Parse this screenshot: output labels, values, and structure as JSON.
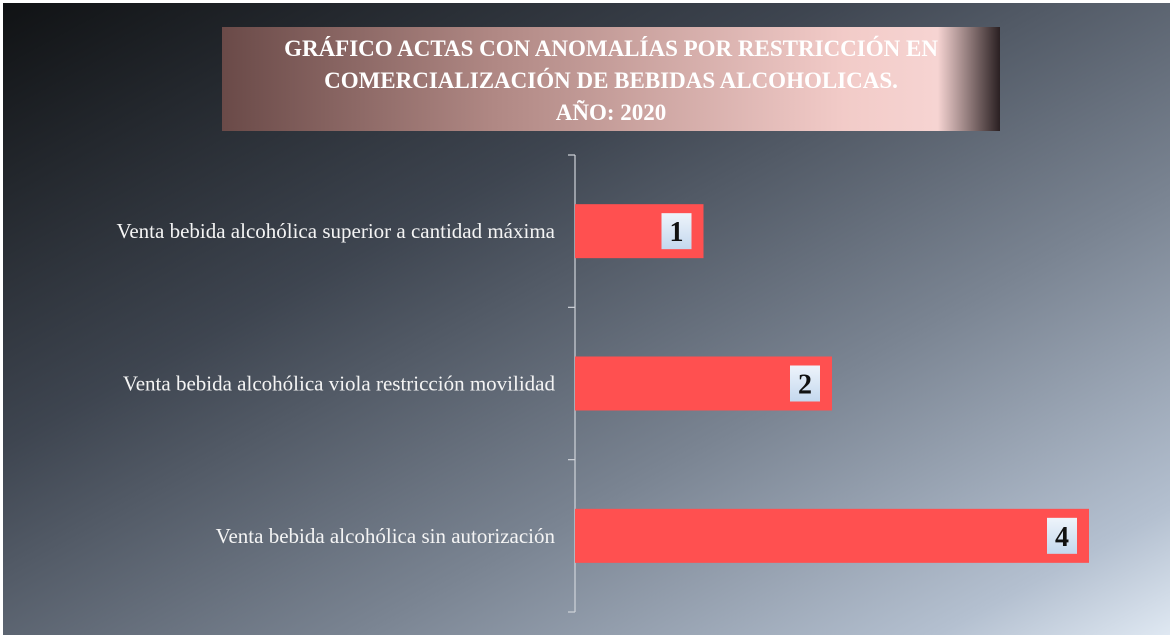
{
  "chart_data": {
    "type": "bar",
    "orientation": "horizontal",
    "title": "GRÁFICO ACTAS CON ANOMALÍAS POR RESTRICCIÓN EN COMERCIALIZACIÓN DE BEBIDAS ALCOHOLICAS.",
    "subtitle": "AÑO: 2020",
    "categories": [
      "Venta bebida alcohólica superior a cantidad máxima",
      "Venta bebida alcohólica viola restricción movilidad",
      "Venta bebida alcohólica sin autorización"
    ],
    "values": [
      1,
      2,
      4
    ],
    "color": "#ff5050"
  }
}
